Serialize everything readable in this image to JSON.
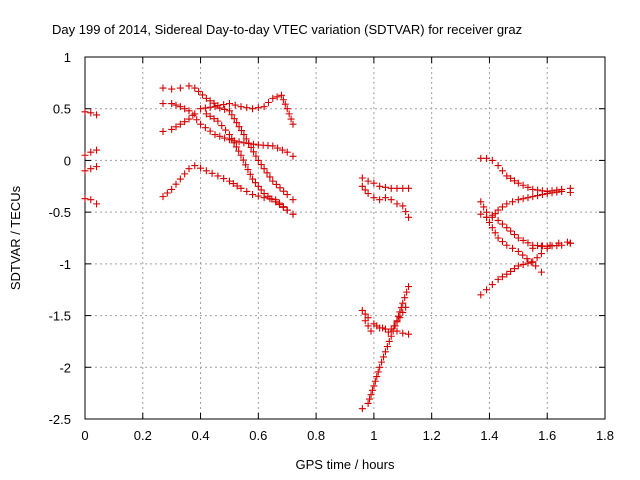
{
  "chart_data": {
    "type": "scatter",
    "title": "Day 199 of 2014, Sidereal Day-to-day VTEC variation (SDTVAR) for receiver graz",
    "xlabel": "GPS time / hours",
    "ylabel": "SDTVAR / TECUs",
    "xlim": [
      0,
      1.8
    ],
    "ylim": [
      -2.5,
      1
    ],
    "xticks": [
      0,
      0.2,
      0.4,
      0.6,
      0.8,
      1,
      1.2,
      1.4,
      1.6,
      1.8
    ],
    "xtick_labels": [
      "0",
      "0.2",
      "0.4",
      "0.6",
      "0.8",
      "1",
      "1.2",
      "1.4",
      "1.6",
      "1.8"
    ],
    "yticks": [
      1,
      0.5,
      0,
      -0.5,
      -1,
      -1.5,
      -2,
      -2.5
    ],
    "ytick_labels": [
      "1",
      "0.5",
      "0",
      "-0.5",
      "-1",
      "-1.5",
      "-2",
      "-2.5"
    ],
    "grid": true,
    "marker": "+",
    "color": "#d40000",
    "series": [
      {
        "name": "s1",
        "x": [
          0.0,
          0.02,
          0.04
        ],
        "y": [
          0.47,
          0.46,
          0.44
        ]
      },
      {
        "name": "s2",
        "x": [
          0.0,
          0.02,
          0.04
        ],
        "y": [
          0.05,
          0.08,
          0.1
        ]
      },
      {
        "name": "s3",
        "x": [
          0.0,
          0.02,
          0.04
        ],
        "y": [
          -0.1,
          -0.08,
          -0.06
        ]
      },
      {
        "name": "s4",
        "x": [
          0.0,
          0.02,
          0.04
        ],
        "y": [
          -0.37,
          -0.38,
          -0.42
        ]
      },
      {
        "name": "s5",
        "x": [
          0.27,
          0.3,
          0.33,
          0.36,
          0.38,
          0.42,
          0.46,
          0.5,
          0.54,
          0.58,
          0.62,
          0.65,
          0.68,
          0.7,
          0.72
        ],
        "y": [
          0.7,
          0.69,
          0.7,
          0.72,
          0.7,
          0.6,
          0.53,
          0.55,
          0.52,
          0.5,
          0.52,
          0.6,
          0.63,
          0.5,
          0.35
        ]
      },
      {
        "name": "s6",
        "x": [
          0.27,
          0.3,
          0.33,
          0.36,
          0.4,
          0.45,
          0.5,
          0.55,
          0.6,
          0.65,
          0.7,
          0.72
        ],
        "y": [
          0.55,
          0.55,
          0.52,
          0.48,
          0.35,
          0.25,
          0.2,
          0.17,
          0.15,
          0.14,
          0.08,
          0.04
        ]
      },
      {
        "name": "s7",
        "x": [
          0.27,
          0.3,
          0.33,
          0.36,
          0.38,
          0.4,
          0.45,
          0.5,
          0.55,
          0.6,
          0.65,
          0.7,
          0.72
        ],
        "y": [
          0.28,
          0.3,
          0.35,
          0.4,
          0.45,
          0.5,
          0.52,
          0.48,
          0.25,
          0.0,
          -0.2,
          -0.33,
          -0.38
        ]
      },
      {
        "name": "s8",
        "x": [
          0.27,
          0.3,
          0.33,
          0.36,
          0.38,
          0.42,
          0.46,
          0.5,
          0.54,
          0.58,
          0.62,
          0.66,
          0.7,
          0.72
        ],
        "y": [
          -0.35,
          -0.28,
          -0.18,
          -0.08,
          -0.05,
          -0.1,
          -0.15,
          -0.2,
          -0.27,
          -0.33,
          -0.36,
          -0.38,
          -0.48,
          -0.52
        ]
      },
      {
        "name": "s9",
        "x": [
          0.42,
          0.46,
          0.5,
          0.54,
          0.58,
          0.62,
          0.66,
          0.7,
          0.72
        ],
        "y": [
          0.45,
          0.38,
          0.25,
          0.05,
          -0.18,
          -0.32,
          -0.4,
          -0.48,
          -0.52
        ]
      },
      {
        "name": "s10",
        "x": [
          0.96,
          0.98,
          1.0,
          1.02,
          1.04,
          1.06,
          1.08,
          1.1,
          1.12
        ],
        "y": [
          -0.17,
          -0.2,
          -0.22,
          -0.25,
          -0.26,
          -0.27,
          -0.27,
          -0.27,
          -0.27
        ]
      },
      {
        "name": "s11",
        "x": [
          0.96,
          0.98,
          1.0,
          1.02,
          1.04,
          1.06,
          1.08,
          1.1,
          1.12
        ],
        "y": [
          -0.25,
          -0.32,
          -0.36,
          -0.38,
          -0.36,
          -0.38,
          -0.42,
          -0.44,
          -0.55
        ]
      },
      {
        "name": "s12",
        "x": [
          0.96,
          0.98,
          1.0,
          1.02,
          1.04,
          1.06,
          1.08,
          1.1,
          1.12
        ],
        "y": [
          -1.45,
          -1.52,
          -1.58,
          -1.62,
          -1.63,
          -1.63,
          -1.65,
          -1.67,
          -1.68
        ]
      },
      {
        "name": "s13",
        "x": [
          0.96,
          0.98,
          1.0,
          1.02,
          1.04,
          1.06,
          1.08,
          1.1,
          1.12
        ],
        "y": [
          -2.4,
          -2.35,
          -2.18,
          -2.0,
          -1.85,
          -1.7,
          -1.55,
          -1.38,
          -1.22
        ]
      },
      {
        "name": "s14",
        "x": [
          0.97,
          0.99,
          1.01,
          1.03,
          1.05,
          1.07,
          1.09,
          1.11
        ],
        "y": [
          -1.55,
          -1.65,
          -1.6,
          -1.62,
          -1.66,
          -1.6,
          -1.52,
          -1.42
        ]
      },
      {
        "name": "s15",
        "x": [
          1.37,
          1.39,
          1.41,
          1.43,
          1.46,
          1.5,
          1.55,
          1.6,
          1.65,
          1.68
        ],
        "y": [
          0.02,
          0.02,
          0.0,
          -0.05,
          -0.15,
          -0.22,
          -0.28,
          -0.3,
          -0.28,
          -0.27
        ]
      },
      {
        "name": "s16",
        "x": [
          1.37,
          1.39,
          1.41,
          1.43,
          1.46,
          1.5,
          1.55,
          1.6,
          1.65,
          1.68
        ],
        "y": [
          -0.4,
          -0.5,
          -0.53,
          -0.58,
          -0.65,
          -0.75,
          -0.82,
          -0.83,
          -0.82,
          -0.8
        ]
      },
      {
        "name": "s17",
        "x": [
          1.37,
          1.39,
          1.41,
          1.43,
          1.46,
          1.5,
          1.55,
          1.6,
          1.65,
          1.68
        ],
        "y": [
          -0.52,
          -0.55,
          -0.55,
          -0.48,
          -0.42,
          -0.38,
          -0.35,
          -0.32,
          -0.3,
          -0.31
        ]
      },
      {
        "name": "s18",
        "x": [
          1.37,
          1.39,
          1.41,
          1.43,
          1.46,
          1.5,
          1.55,
          1.58,
          1.6
        ],
        "y": [
          -1.3,
          -1.25,
          -1.2,
          -1.15,
          -1.1,
          -1.02,
          -0.98,
          -0.9,
          -0.85
        ]
      },
      {
        "name": "s19",
        "x": [
          1.39,
          1.41,
          1.43,
          1.46,
          1.5,
          1.53,
          1.56,
          1.58
        ],
        "y": [
          -0.55,
          -0.65,
          -0.75,
          -0.82,
          -0.88,
          -0.95,
          -1.02,
          -1.08
        ]
      },
      {
        "name": "s20",
        "x": [
          1.55,
          1.58,
          1.61,
          1.64,
          1.67,
          1.68
        ],
        "y": [
          -0.85,
          -0.83,
          -0.82,
          -0.8,
          -0.79,
          -0.8
        ]
      }
    ]
  }
}
